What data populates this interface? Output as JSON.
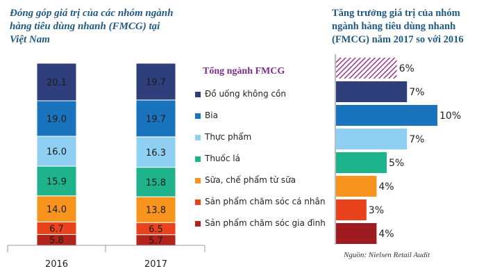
{
  "left_title": "Đóng góp giá trị của các nhóm ngành hàng tiêu dùng nhanh (FMCG) tại Việt Nam",
  "right_title": "Tăng trưởng giá trị của nhóm ngành hàng tiêu dùng nhanh (FMCG) năm 2017 so với 2016",
  "legend_title": "Tổng ngành FMCG",
  "source": "Nguồn: Nielsen Retail Audit",
  "colors": {
    "title": "#1f5a86",
    "legend_title": "#7a2e8a",
    "total": "#a0328f"
  },
  "chart_data": [
    {
      "type": "bar",
      "stacked": true,
      "categories": [
        "2016",
        "2017"
      ],
      "series": [
        {
          "name": "Sản phẩm chăm sóc gia đình",
          "color": "#b2231b",
          "values": [
            5.8,
            5.7
          ]
        },
        {
          "name": "Sản phẩm chăm sóc cá nhân",
          "color": "#e8431c",
          "values": [
            6.7,
            6.5
          ]
        },
        {
          "name": "Sữa, chế phẩm từ sữa",
          "color": "#f7941d",
          "values": [
            14.0,
            13.8
          ]
        },
        {
          "name": "Thuốc lá",
          "color": "#1eb38a",
          "values": [
            15.9,
            15.8
          ]
        },
        {
          "name": "Thực phẩm",
          "color": "#8fd0f2",
          "values": [
            16.0,
            16.3
          ]
        },
        {
          "name": "Bia",
          "color": "#1a74bd",
          "values": [
            19.0,
            19.7
          ]
        },
        {
          "name": "Đồ uống không cồn",
          "color": "#2e3f7c",
          "values": [
            20.1,
            19.7
          ]
        }
      ],
      "value_labels": [
        [
          "5.8",
          "6.7",
          "14.0",
          "15.9",
          "16.0",
          "19.0",
          "20.1"
        ],
        [
          "5.7",
          "6.5",
          "13.8",
          "15.8",
          "16.3",
          "19.7",
          "19.7"
        ]
      ],
      "legend_order": [
        "Đồ uống không cồn",
        "Bia",
        "Thực phẩm",
        "Thuốc lá",
        "Sữa, chế phẩm từ sữa",
        "Sản phẩm chăm sóc cá nhân",
        "Sản phẩm chăm sóc gia đình"
      ]
    },
    {
      "type": "bar",
      "orientation": "horizontal",
      "categories": [
        "Tổng ngành FMCG",
        "Đồ uống không cồn",
        "Bia",
        "Thực phẩm",
        "Thuốc lá",
        "Sữa, chế phẩm từ sữa",
        "Sản phẩm chăm sóc cá nhân",
        "Sản phẩm chăm sóc gia đình"
      ],
      "values": [
        6,
        7,
        10,
        7,
        5,
        4,
        3,
        4
      ],
      "labels": [
        "6%",
        "7%",
        "10%",
        "7%",
        "5%",
        "4%",
        "3%",
        "4%"
      ],
      "colors": [
        "#a0328f",
        "#2e3f7c",
        "#1a74bd",
        "#8fd0f2",
        "#1eb38a",
        "#f7941d",
        "#e8431c",
        "#9e1c20"
      ]
    }
  ]
}
